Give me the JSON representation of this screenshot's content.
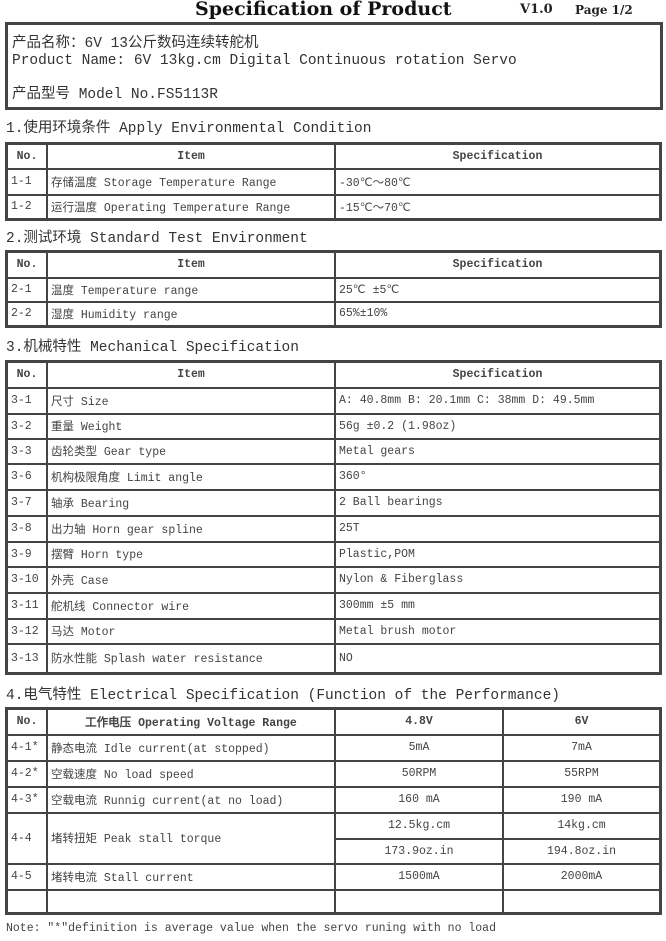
{
  "header": {
    "title": "Specification of Product",
    "version": "V1.0",
    "page": "Page 1/2"
  },
  "product": {
    "name_cn": "产品名称：6V 13公斤数码连续转舵机",
    "name_en": "Product Name: 6V 13kg.cm Digital Continuous rotation Servo",
    "model": "产品型号 Model No.FS5113R"
  },
  "sections": [
    {
      "title": "1.使用环境条件  Apply Environmental Condition",
      "headers": [
        "No.",
        "Item",
        "Specification"
      ],
      "rows": [
        [
          "1-1",
          "存储温度  Storage Temperature Range",
          "-30℃～80℃"
        ],
        [
          "1-2",
          "运行温度  Operating Temperature Range",
          "-15℃～70℃"
        ]
      ]
    },
    {
      "title": "2.测试环境  Standard Test Environment",
      "headers": [
        "No.",
        "Item",
        "Specification"
      ],
      "rows": [
        [
          "2-1",
          "温度 Temperature range",
          "25℃ ±5℃"
        ],
        [
          "2-2",
          "湿度 Humidity range",
          "65%±10%"
        ]
      ]
    },
    {
      "title": "3.机械特性  Mechanical Specification",
      "headers": [
        "No.",
        "Item",
        "Specification"
      ],
      "rows": [
        [
          "3-1",
          "尺寸 Size",
          "A: 40.8mm B: 20.1mm C: 38mm D: 49.5mm"
        ],
        [
          "3-2",
          "重量  Weight",
          "56g ±0.2 (1.98oz)"
        ],
        [
          "3-3",
          "齿轮类型  Gear type",
          "Metal gears"
        ],
        [
          "3-6",
          "机构极限角度  Limit angle",
          "360°"
        ],
        [
          "3-7",
          "轴承  Bearing",
          "2 Ball bearings"
        ],
        [
          "3-8",
          "出力轴  Horn gear spline",
          "25T"
        ],
        [
          "3-9",
          "摆臂  Horn type",
          "Plastic,POM"
        ],
        [
          "3-10",
          "外壳  Case",
          "Nylon & Fiberglass"
        ],
        [
          "3-11",
          "舵机线  Connector wire",
          "300mm ±5 mm"
        ],
        [
          "3-12",
          "马达  Motor",
          "Metal brush motor"
        ],
        [
          "3-13",
          "防水性能  Splash water resistance",
          "NO"
        ]
      ]
    }
  ],
  "electrical": {
    "title": "4.电气特性  Electrical Specification (Function of the Performance)",
    "headers": [
      "No.",
      "工作电压  Operating Voltage Range",
      "4.8V",
      "6V"
    ],
    "rows": [
      [
        "4-1*",
        "静态电流  Idle current(at stopped)",
        "5mA",
        "7mA"
      ],
      [
        "4-2*",
        "空载速度  No load  speed",
        "50RPM",
        "55RPM"
      ],
      [
        "4-3*",
        "空载电流  Runnig current(at no load)",
        "160 mA",
        "190 mA"
      ],
      [
        "4-4",
        "堵转扭矩  Peak stall torque",
        "12.5kg.cm",
        "14kg.cm",
        "173.9oz.in",
        "194.8oz.in"
      ],
      [
        "4-5",
        "堵转电流 Stall current",
        "1500mA",
        "2000mA"
      ]
    ]
  },
  "note": "Note: \"*\"definition is average value when the servo runing with no load"
}
